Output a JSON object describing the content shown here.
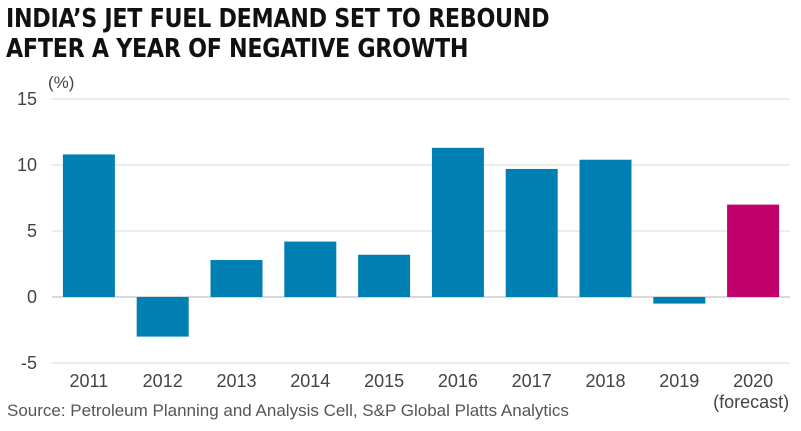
{
  "title_lines": [
    "INDIA’S JET FUEL DEMAND SET TO REBOUND",
    "AFTER A YEAR OF NEGATIVE GROWTH"
  ],
  "source": "Source: Petroleum Planning and Analysis Cell, S&P Global Platts Analytics",
  "chart_data": {
    "type": "bar",
    "title": "INDIA’S JET FUEL DEMAND SET TO REBOUND AFTER A YEAR OF NEGATIVE GROWTH",
    "ylabel": "(%)",
    "xlabel": "",
    "categories": [
      "2011",
      "2012",
      "2013",
      "2014",
      "2015",
      "2016",
      "2017",
      "2018",
      "2019",
      "2020"
    ],
    "category_sublabels": [
      "",
      "",
      "",
      "",
      "",
      "",
      "",
      "",
      "",
      "(forecast)"
    ],
    "values": [
      10.8,
      -3.0,
      2.8,
      4.2,
      3.2,
      11.3,
      9.7,
      10.4,
      -0.5,
      7.0
    ],
    "ylim": [
      -5,
      15
    ],
    "yticks": [
      15,
      10,
      5,
      0,
      -5
    ],
    "grid": true,
    "legend": "none",
    "colors": {
      "actual": "#0080b2",
      "forecast": "#c1006b",
      "grid": "#d9d9d9",
      "zero_line": "#b3b3b3"
    },
    "forecast_index": 9
  }
}
